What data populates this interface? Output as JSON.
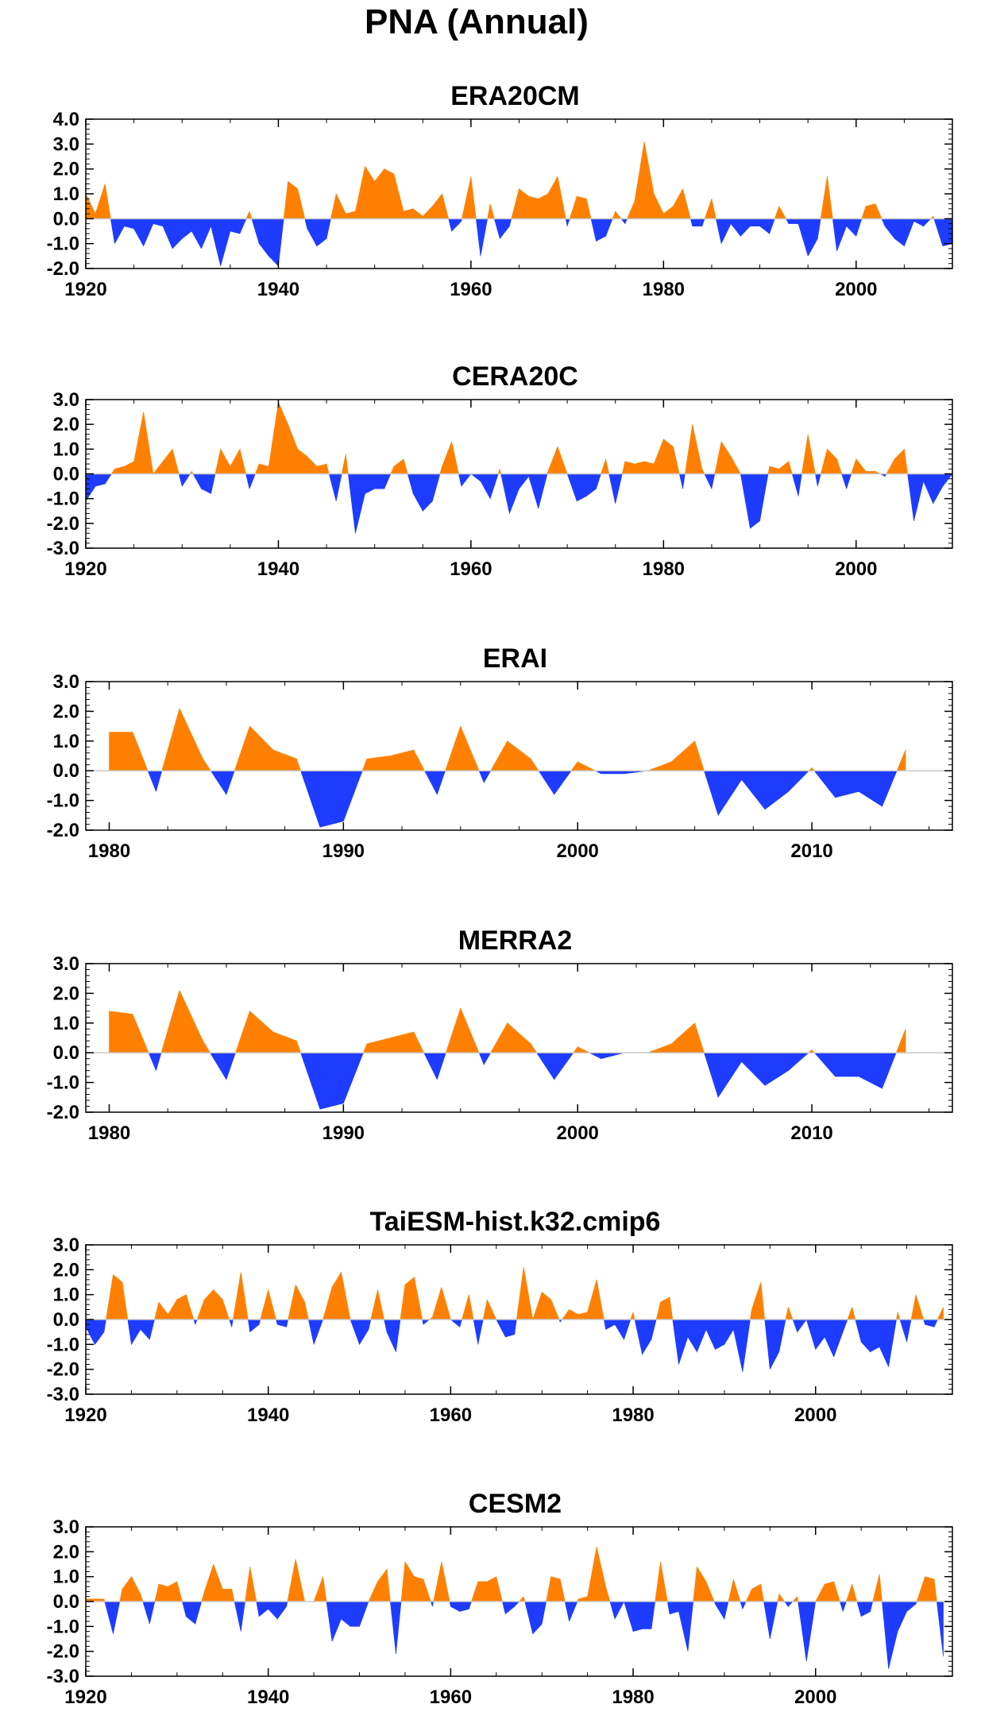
{
  "title": "PNA (Annual)",
  "colors": {
    "positive": "#ff8000",
    "negative": "#1e3cff",
    "axis": "#000000",
    "zero_line": "#c8c8c8"
  },
  "chart_data": [
    {
      "type": "area",
      "title": "ERA20CM",
      "xlim": [
        1920,
        2010
      ],
      "ylim": [
        -2.0,
        4.0
      ],
      "yticks": [
        -2.0,
        -1.0,
        0.0,
        1.0,
        2.0,
        3.0,
        4.0
      ],
      "ytick_labels": [
        "-2.0",
        "-1.0",
        "0.0",
        "1.0",
        "2.0",
        "3.0",
        "4.0"
      ],
      "xticks": [
        1920,
        1940,
        1960,
        1980,
        2000
      ],
      "xtick_labels": [
        "1920",
        "1940",
        "1960",
        "1980",
        "2000"
      ],
      "x": [
        1920,
        1921,
        1922,
        1923,
        1924,
        1925,
        1926,
        1927,
        1928,
        1929,
        1930,
        1931,
        1932,
        1933,
        1934,
        1935,
        1936,
        1937,
        1938,
        1939,
        1940,
        1941,
        1942,
        1943,
        1944,
        1945,
        1946,
        1947,
        1948,
        1949,
        1950,
        1951,
        1952,
        1953,
        1954,
        1955,
        1956,
        1957,
        1958,
        1959,
        1960,
        1961,
        1962,
        1963,
        1964,
        1965,
        1966,
        1967,
        1968,
        1969,
        1970,
        1971,
        1972,
        1973,
        1974,
        1975,
        1976,
        1977,
        1978,
        1979,
        1980,
        1981,
        1982,
        1983,
        1984,
        1985,
        1986,
        1987,
        1988,
        1989,
        1990,
        1991,
        1992,
        1993,
        1994,
        1995,
        1996,
        1997,
        1998,
        1999,
        2000,
        2001,
        2002,
        2003,
        2004,
        2005,
        2006,
        2007,
        2008,
        2009,
        2010
      ],
      "values": [
        1.0,
        0.2,
        1.4,
        -1.0,
        -0.3,
        -0.4,
        -1.1,
        -0.2,
        -0.3,
        -1.2,
        -0.8,
        -0.5,
        -1.2,
        -0.3,
        -1.9,
        -0.5,
        -0.6,
        0.3,
        -1.0,
        -1.5,
        -1.9,
        1.5,
        1.2,
        -0.4,
        -1.1,
        -0.8,
        1.0,
        0.2,
        0.3,
        2.1,
        1.5,
        2.0,
        1.8,
        0.3,
        0.4,
        0.1,
        0.5,
        1.0,
        -0.5,
        -0.1,
        1.7,
        -1.5,
        0.6,
        -0.8,
        -0.3,
        1.2,
        0.9,
        0.8,
        1.0,
        1.7,
        -0.3,
        0.9,
        0.8,
        -0.9,
        -0.7,
        0.3,
        -0.2,
        0.7,
        3.1,
        1.0,
        0.2,
        0.5,
        1.2,
        -0.3,
        -0.3,
        0.8,
        -1.0,
        -0.2,
        -0.7,
        -0.3,
        -0.3,
        -0.6,
        0.5,
        -0.2,
        -0.2,
        -1.5,
        -0.8,
        1.7,
        -1.3,
        -0.3,
        -0.7,
        0.5,
        0.6,
        -0.3,
        -0.8,
        -1.1,
        -0.1,
        -0.3,
        0.1,
        -1.1,
        -1.0
      ]
    },
    {
      "type": "area",
      "title": "CERA20C",
      "xlim": [
        1920,
        2010
      ],
      "ylim": [
        -3.0,
        3.0
      ],
      "yticks": [
        -3.0,
        -2.0,
        -1.0,
        0.0,
        1.0,
        2.0,
        3.0
      ],
      "ytick_labels": [
        "-3.0",
        "-2.0",
        "-1.0",
        "0.0",
        "1.0",
        "2.0",
        "3.0"
      ],
      "xticks": [
        1920,
        1940,
        1960,
        1980,
        2000
      ],
      "xtick_labels": [
        "1920",
        "1940",
        "1960",
        "1980",
        "2000"
      ],
      "x": [
        1920,
        1921,
        1922,
        1923,
        1924,
        1925,
        1926,
        1927,
        1928,
        1929,
        1930,
        1931,
        1932,
        1933,
        1934,
        1935,
        1936,
        1937,
        1938,
        1939,
        1940,
        1941,
        1942,
        1943,
        1944,
        1945,
        1946,
        1947,
        1948,
        1949,
        1950,
        1951,
        1952,
        1953,
        1954,
        1955,
        1956,
        1957,
        1958,
        1959,
        1960,
        1961,
        1962,
        1963,
        1964,
        1965,
        1966,
        1967,
        1968,
        1969,
        1970,
        1971,
        1972,
        1973,
        1974,
        1975,
        1976,
        1977,
        1978,
        1979,
        1980,
        1981,
        1982,
        1983,
        1984,
        1985,
        1986,
        1987,
        1988,
        1989,
        1990,
        1991,
        1992,
        1993,
        1994,
        1995,
        1996,
        1997,
        1998,
        1999,
        2000,
        2001,
        2002,
        2003,
        2004,
        2005,
        2006,
        2007,
        2008,
        2009,
        2010
      ],
      "values": [
        -1.1,
        -0.5,
        -0.4,
        0.2,
        0.3,
        0.5,
        2.5,
        0.0,
        0.5,
        1.0,
        -0.5,
        0.1,
        -0.6,
        -0.8,
        1.0,
        0.3,
        1.0,
        -0.6,
        0.4,
        0.3,
        2.9,
        2.0,
        1.0,
        0.7,
        0.3,
        0.4,
        -1.1,
        0.8,
        -2.4,
        -0.8,
        -0.6,
        -0.6,
        0.3,
        0.6,
        -0.8,
        -1.5,
        -1.1,
        0.3,
        1.3,
        -0.5,
        0.0,
        -0.3,
        -1.0,
        0.2,
        -1.6,
        -0.6,
        -0.1,
        -1.4,
        0.1,
        1.1,
        0.0,
        -1.1,
        -0.9,
        -0.6,
        0.6,
        -1.2,
        0.5,
        0.4,
        0.5,
        0.4,
        1.4,
        1.1,
        -0.6,
        2.0,
        0.2,
        -0.6,
        1.3,
        0.7,
        0.0,
        -2.2,
        -1.9,
        0.3,
        0.2,
        0.5,
        -0.9,
        1.6,
        -0.5,
        1.0,
        0.6,
        -0.6,
        0.6,
        0.1,
        0.1,
        -0.1,
        0.6,
        1.0,
        -1.9,
        -0.3,
        -1.2,
        -0.5,
        0.0
      ]
    },
    {
      "type": "area",
      "title": "ERAI",
      "xlim": [
        1979,
        2016
      ],
      "ylim": [
        -2.0,
        3.0
      ],
      "yticks": [
        -2.0,
        -1.0,
        0.0,
        1.0,
        2.0,
        3.0
      ],
      "ytick_labels": [
        "-2.0",
        "-1.0",
        "0.0",
        "1.0",
        "2.0",
        "3.0"
      ],
      "xticks": [
        1980,
        1990,
        2000,
        2010
      ],
      "xtick_labels": [
        "1980",
        "1990",
        "2000",
        "2010"
      ],
      "x": [
        1980,
        1981,
        1982,
        1983,
        1984,
        1985,
        1986,
        1987,
        1988,
        1989,
        1990,
        1991,
        1992,
        1993,
        1994,
        1995,
        1996,
        1997,
        1998,
        1999,
        2000,
        2001,
        2002,
        2003,
        2004,
        2005,
        2006,
        2007,
        2008,
        2009,
        2010,
        2011,
        2012,
        2013,
        2014
      ],
      "values": [
        1.3,
        1.3,
        -0.7,
        2.1,
        0.4,
        -0.8,
        1.5,
        0.7,
        0.4,
        -1.9,
        -1.7,
        0.4,
        0.5,
        0.7,
        -0.8,
        1.5,
        -0.4,
        1.0,
        0.4,
        -0.8,
        0.3,
        -0.1,
        -0.1,
        0.0,
        0.3,
        1.0,
        -1.5,
        -0.3,
        -1.3,
        -0.7,
        0.1,
        -0.9,
        -0.7,
        -1.2,
        0.7
      ]
    },
    {
      "type": "area",
      "title": "MERRA2",
      "xlim": [
        1979,
        2016
      ],
      "ylim": [
        -2.0,
        3.0
      ],
      "yticks": [
        -2.0,
        -1.0,
        0.0,
        1.0,
        2.0,
        3.0
      ],
      "ytick_labels": [
        "-2.0",
        "-1.0",
        "0.0",
        "1.0",
        "2.0",
        "3.0"
      ],
      "xticks": [
        1980,
        1990,
        2000,
        2010
      ],
      "xtick_labels": [
        "1980",
        "1990",
        "2000",
        "2010"
      ],
      "x": [
        1980,
        1981,
        1982,
        1983,
        1984,
        1985,
        1986,
        1987,
        1988,
        1989,
        1990,
        1991,
        1992,
        1993,
        1994,
        1995,
        1996,
        1997,
        1998,
        1999,
        2000,
        2001,
        2002,
        2003,
        2004,
        2005,
        2006,
        2007,
        2008,
        2009,
        2010,
        2011,
        2012,
        2013,
        2014
      ],
      "values": [
        1.4,
        1.3,
        -0.6,
        2.1,
        0.4,
        -0.9,
        1.4,
        0.7,
        0.4,
        -1.9,
        -1.7,
        0.3,
        0.5,
        0.7,
        -0.9,
        1.5,
        -0.4,
        1.0,
        0.3,
        -0.9,
        0.2,
        -0.2,
        0.0,
        0.0,
        0.3,
        1.0,
        -1.5,
        -0.3,
        -1.1,
        -0.6,
        0.1,
        -0.8,
        -0.8,
        -1.2,
        0.8
      ]
    },
    {
      "type": "area",
      "title": "TaiESM-hist.k32.cmip6",
      "xlim": [
        1920,
        2015
      ],
      "ylim": [
        -3.0,
        3.0
      ],
      "yticks": [
        -3.0,
        -2.0,
        -1.0,
        0.0,
        1.0,
        2.0,
        3.0
      ],
      "ytick_labels": [
        "-3.0",
        "-2.0",
        "-1.0",
        "0.0",
        "1.0",
        "2.0",
        "3.0"
      ],
      "xticks": [
        1920,
        1940,
        1960,
        1980,
        2000
      ],
      "xtick_labels": [
        "1920",
        "1940",
        "1960",
        "1980",
        "2000"
      ],
      "x": [
        1920,
        1921,
        1922,
        1923,
        1924,
        1925,
        1926,
        1927,
        1928,
        1929,
        1930,
        1931,
        1932,
        1933,
        1934,
        1935,
        1936,
        1937,
        1938,
        1939,
        1940,
        1941,
        1942,
        1943,
        1944,
        1945,
        1946,
        1947,
        1948,
        1949,
        1950,
        1951,
        1952,
        1953,
        1954,
        1955,
        1956,
        1957,
        1958,
        1959,
        1960,
        1961,
        1962,
        1963,
        1964,
        1965,
        1966,
        1967,
        1968,
        1969,
        1970,
        1971,
        1972,
        1973,
        1974,
        1975,
        1976,
        1977,
        1978,
        1979,
        1980,
        1981,
        1982,
        1983,
        1984,
        1985,
        1986,
        1987,
        1988,
        1989,
        1990,
        1991,
        1992,
        1993,
        1994,
        1995,
        1996,
        1997,
        1998,
        1999,
        2000,
        2001,
        2002,
        2003,
        2004,
        2005,
        2006,
        2007,
        2008,
        2009,
        2010,
        2011,
        2012,
        2013,
        2014
      ],
      "values": [
        -0.3,
        -1.0,
        -0.5,
        1.8,
        1.5,
        -1.0,
        -0.4,
        -0.8,
        0.7,
        0.2,
        0.8,
        1.0,
        -0.2,
        0.8,
        1.2,
        0.8,
        -0.3,
        1.9,
        -0.5,
        -0.2,
        1.2,
        -0.2,
        -0.3,
        1.4,
        0.7,
        -1.0,
        0.0,
        1.3,
        1.9,
        0.0,
        -1.0,
        -0.4,
        1.2,
        -0.5,
        -1.3,
        1.4,
        1.7,
        -0.2,
        0.1,
        1.3,
        0.0,
        -0.3,
        1.0,
        -1.0,
        0.8,
        0.0,
        -0.7,
        -0.6,
        2.1,
        0.0,
        1.1,
        0.8,
        -0.1,
        0.4,
        0.2,
        0.3,
        1.6,
        -0.4,
        -0.2,
        -0.8,
        0.3,
        -1.4,
        -0.8,
        0.7,
        0.9,
        -1.8,
        -0.7,
        -1.3,
        -0.4,
        -1.2,
        -1.0,
        -0.4,
        -2.1,
        0.4,
        1.5,
        -2.0,
        -1.3,
        0.5,
        -0.5,
        0.0,
        -1.2,
        -0.7,
        -1.5,
        -0.5,
        0.5,
        -0.9,
        -1.3,
        -1.1,
        -1.9,
        0.3,
        -0.9,
        1.0,
        -0.2,
        -0.3,
        0.5
      ]
    },
    {
      "type": "area",
      "title": "CESM2",
      "xlim": [
        1920,
        2015
      ],
      "ylim": [
        -3.0,
        3.0
      ],
      "yticks": [
        -3.0,
        -2.0,
        -1.0,
        0.0,
        1.0,
        2.0,
        3.0
      ],
      "ytick_labels": [
        "-3.0",
        "-2.0",
        "-1.0",
        "0.0",
        "1.0",
        "2.0",
        "3.0"
      ],
      "xticks": [
        1920,
        1940,
        1960,
        1980,
        2000
      ],
      "xtick_labels": [
        "1920",
        "1940",
        "1960",
        "1980",
        "2000"
      ],
      "x": [
        1920,
        1921,
        1922,
        1923,
        1924,
        1925,
        1926,
        1927,
        1928,
        1929,
        1930,
        1931,
        1932,
        1933,
        1934,
        1935,
        1936,
        1937,
        1938,
        1939,
        1940,
        1941,
        1942,
        1943,
        1944,
        1945,
        1946,
        1947,
        1948,
        1949,
        1950,
        1951,
        1952,
        1953,
        1954,
        1955,
        1956,
        1957,
        1958,
        1959,
        1960,
        1961,
        1962,
        1963,
        1964,
        1965,
        1966,
        1967,
        1968,
        1969,
        1970,
        1971,
        1972,
        1973,
        1974,
        1975,
        1976,
        1977,
        1978,
        1979,
        1980,
        1981,
        1982,
        1983,
        1984,
        1985,
        1986,
        1987,
        1988,
        1989,
        1990,
        1991,
        1992,
        1993,
        1994,
        1995,
        1996,
        1997,
        1998,
        1999,
        2000,
        2001,
        2002,
        2003,
        2004,
        2005,
        2006,
        2007,
        2008,
        2009,
        2010,
        2011,
        2012,
        2013,
        2014
      ],
      "values": [
        0.1,
        0.1,
        0.1,
        -1.3,
        0.5,
        1.0,
        0.3,
        -0.9,
        0.7,
        0.6,
        0.8,
        -0.6,
        -0.9,
        0.4,
        1.5,
        0.5,
        0.5,
        -1.2,
        1.4,
        -0.6,
        -0.3,
        -0.7,
        -0.2,
        1.7,
        0.0,
        0.0,
        1.0,
        -1.6,
        -0.7,
        -1.0,
        -1.0,
        0.0,
        0.8,
        1.3,
        -2.1,
        1.6,
        1.0,
        0.9,
        -0.2,
        1.6,
        -0.2,
        -0.4,
        -0.3,
        0.8,
        0.8,
        1.0,
        -0.5,
        -0.2,
        0.2,
        -1.3,
        -0.9,
        1.0,
        0.9,
        -0.8,
        0.1,
        0.2,
        2.2,
        0.6,
        -0.7,
        0.0,
        -1.2,
        -1.1,
        -1.1,
        1.6,
        -0.5,
        -0.4,
        -2.0,
        1.4,
        0.8,
        -0.1,
        -0.7,
        0.9,
        -0.3,
        0.5,
        0.7,
        -1.5,
        0.3,
        -0.2,
        0.2,
        -2.4,
        0.0,
        0.7,
        0.8,
        -0.4,
        0.7,
        -0.6,
        -0.4,
        1.1,
        -2.7,
        -1.2,
        -0.4,
        -0.1,
        1.0,
        0.9,
        -2.2
      ]
    }
  ]
}
